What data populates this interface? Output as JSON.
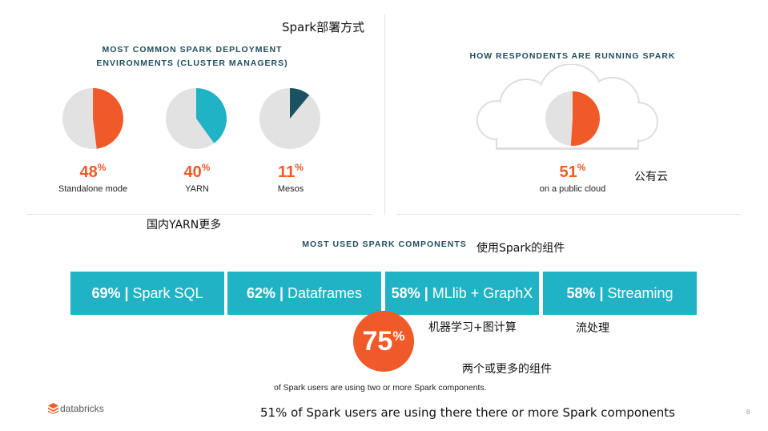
{
  "slide_title": "Spark部署方式",
  "left_panel": {
    "heading_line1": "MOST COMMON SPARK DEPLOYMENT",
    "heading_line2": "ENVIRONMENTS (CLUSTER MANAGERS)",
    "pies": [
      {
        "value": 48,
        "percent": "48",
        "label": "Standalone mode",
        "color": "#f05a28"
      },
      {
        "value": 40,
        "percent": "40",
        "label": "YARN",
        "color": "#20b3c6"
      },
      {
        "value": 11,
        "percent": "11",
        "label": "Mesos",
        "color": "#1a5261"
      }
    ],
    "note": "国内YARN更多"
  },
  "right_panel": {
    "heading": "HOW RESPONDENTS ARE RUNNING SPARK",
    "pie": {
      "value": 51,
      "percent": "51",
      "label": "on a public cloud",
      "color": "#f05a28"
    },
    "note": "公有云"
  },
  "components": {
    "heading": "MOST USED SPARK COMPONENTS",
    "note": "使用Spark的组件",
    "bars": [
      {
        "percent": "69%",
        "name": "Spark SQL"
      },
      {
        "percent": "62%",
        "name": "Dataframes"
      },
      {
        "percent": "58%",
        "name": "MLlib + GraphX"
      },
      {
        "percent": "58%",
        "name": "Streaming"
      }
    ],
    "bar_notes": {
      "mllib": "机器学习+图计算",
      "streaming": "流处理"
    }
  },
  "highlight": {
    "percent": "75",
    "note": "两个或更多的组件",
    "caption": "of Spark users are using two or more Spark components."
  },
  "footer": {
    "brand": "databricks",
    "summary": "51% of Spark users are using there there or more Spark components",
    "page_number": "8"
  },
  "colors": {
    "orange": "#f05a28",
    "teal": "#20b3c6",
    "dark_teal": "#1a5261",
    "pie_bg": "#e2e2e2",
    "heading": "#1f4e5f"
  }
}
